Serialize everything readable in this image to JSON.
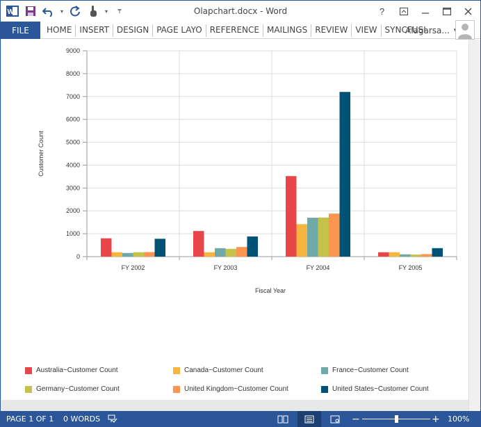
{
  "window": {
    "title": "Olapchart.docx - Word",
    "help": "?"
  },
  "ribbon": {
    "file": "FILE",
    "tabs": [
      "HOME",
      "INSERT",
      "DESIGN",
      "PAGE LAYO",
      "REFERENCE",
      "MAILINGS",
      "REVIEW",
      "VIEW",
      "SYNCFUSI"
    ],
    "user": "Alagarsa..."
  },
  "status": {
    "page": "PAGE 1 OF 1",
    "words": "0 WORDS",
    "zoom": "100%",
    "zoom_fraction": 0.5
  },
  "chart_data": {
    "type": "bar",
    "categories": [
      "FY 2002",
      "FY 2003",
      "FY 2004",
      "FY 2005"
    ],
    "xlabel": "Fiscal Year",
    "ylabel": "Customer Count",
    "ylim": [
      0,
      9000
    ],
    "yticks": [
      0,
      1000,
      2000,
      3000,
      4000,
      5000,
      6000,
      7000,
      8000,
      9000
    ],
    "grid": true,
    "legend_position": "bottom",
    "series": [
      {
        "name": "Australia~Customer Count",
        "color": "#e94649",
        "values": [
          800,
          1120,
          3520,
          190
        ]
      },
      {
        "name": "Canada~Customer Count",
        "color": "#f6b53f",
        "values": [
          190,
          190,
          1420,
          190
        ]
      },
      {
        "name": "France~Customer Count",
        "color": "#6faaa9",
        "values": [
          160,
          370,
          1700,
          100
        ]
      },
      {
        "name": "Germany~Customer Count",
        "color": "#c4c24a",
        "values": [
          190,
          340,
          1710,
          90
        ]
      },
      {
        "name": "United Kingdom~Customer Count",
        "color": "#fb954f",
        "values": [
          200,
          420,
          1880,
          110
        ]
      },
      {
        "name": "United States~Customer Count",
        "color": "#005277",
        "values": [
          780,
          880,
          7200,
          370
        ]
      }
    ]
  }
}
